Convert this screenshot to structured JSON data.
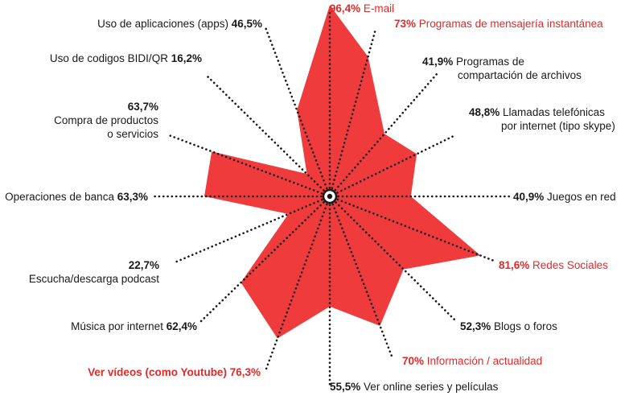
{
  "chart_data": {
    "type": "radar",
    "title": "",
    "max": 100,
    "fill_color": "#ef3b3b",
    "highlight_color": "#e02a2a",
    "text_color": "#1a1a1a",
    "axes": [
      {
        "name": "E-mail",
        "value": 96.4,
        "pct_label": "96,4%",
        "name_label": "E-mail",
        "highlight": true
      },
      {
        "name": "Programas de mensajería instantánea",
        "value": 73,
        "pct_label": "73%",
        "name_label": "Programas de mensajería instantánea",
        "highlight": true
      },
      {
        "name": "Programas de compartación de archivos",
        "value": 41.9,
        "pct_label": "41,9%",
        "name_label": "Programas de",
        "name_label_2": "compartación de archivos",
        "highlight": false
      },
      {
        "name": "Llamadas telefónicas por internet (tipo skype)",
        "value": 48.8,
        "pct_label": "48,8%",
        "name_label": "Llamadas telefónicas",
        "name_label_2": "por internet (tipo skype)",
        "highlight": false
      },
      {
        "name": "Juegos en red",
        "value": 40.9,
        "pct_label": "40,9%",
        "name_label": "Juegos en red",
        "highlight": false
      },
      {
        "name": "Redes Sociales",
        "value": 81.6,
        "pct_label": "81,6%",
        "name_label": "Redes Sociales",
        "highlight": true
      },
      {
        "name": "Blogs o foros",
        "value": 52.3,
        "pct_label": "52,3%",
        "name_label": "Blogs o foros",
        "highlight": false
      },
      {
        "name": "Información / actualidad",
        "value": 70,
        "pct_label": "70%",
        "name_label": "Información / actualidad",
        "highlight": true
      },
      {
        "name": "Ver online series y películas",
        "value": 55.5,
        "pct_label": "55,5%",
        "name_label": "Ver online series y películas",
        "highlight": false
      },
      {
        "name": "Ver vídeos (como Youtube)",
        "value": 76.3,
        "pct_label": "76,3%",
        "name_label": "Ver vídeos (como Youtube)",
        "highlight": true
      },
      {
        "name": "Música por internet",
        "value": 62.4,
        "pct_label": "62,4%",
        "name_label": "Música por internet",
        "highlight": false
      },
      {
        "name": "Escucha/descarga podcast",
        "value": 22.7,
        "pct_label": "22,7%",
        "name_label": "Escucha/descarga podcast",
        "highlight": false
      },
      {
        "name": "Operaciones de banca",
        "value": 63.3,
        "pct_label": "63,3%",
        "name_label": "Operaciones de banca",
        "highlight": false
      },
      {
        "name": "Compra de productos o servicios",
        "value": 63.7,
        "pct_label": "63,7%",
        "name_label": "Compra de productos",
        "name_label_2": "o servicios",
        "highlight": false
      },
      {
        "name": "Uso de codigos BIDI/QR",
        "value": 16.2,
        "pct_label": "16,2%",
        "name_label": "Uso de codigos BIDI/QR",
        "highlight": false
      },
      {
        "name": "Uso de aplicaciones (apps)",
        "value": 46.5,
        "pct_label": "46,5%",
        "name_label": "Uso de aplicaciones (apps)",
        "highlight": false
      }
    ]
  }
}
